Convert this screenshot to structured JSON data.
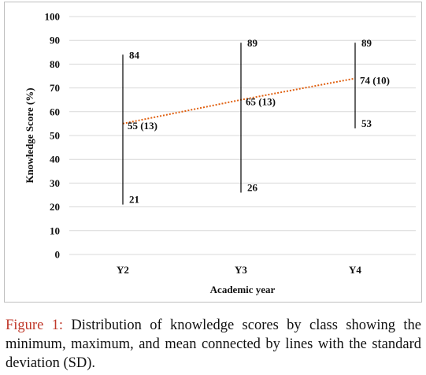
{
  "chart_data": {
    "type": "range",
    "categories": [
      "Y2",
      "Y3",
      "Y4"
    ],
    "min": [
      21,
      26,
      53
    ],
    "max": [
      84,
      89,
      89
    ],
    "mean": [
      55,
      65,
      74
    ],
    "sd": [
      13,
      13,
      10
    ],
    "mean_labels": [
      "55 (13)",
      "65 (13)",
      "74 (10)"
    ],
    "min_labels": [
      "21",
      "26",
      "53"
    ],
    "max_labels": [
      "84",
      "89",
      "89"
    ],
    "xlabel": "Academic year",
    "ylabel": "Knowledge Score (%)",
    "ylim": [
      0,
      100
    ],
    "yticks": [
      "0",
      "10",
      "20",
      "30",
      "40",
      "50",
      "60",
      "70",
      "80",
      "90",
      "100"
    ],
    "grid": "horizontal",
    "trendline": "dotted",
    "colors": {
      "range_line": "#000000",
      "trendline": "#e06010",
      "gridline": "#d9d9d9"
    }
  },
  "caption": {
    "prefix": "Figure 1:",
    "text": " Distribution of knowledge scores by class showing the minimum, maximum, and mean connected by lines with the standard deviation (SD)."
  }
}
